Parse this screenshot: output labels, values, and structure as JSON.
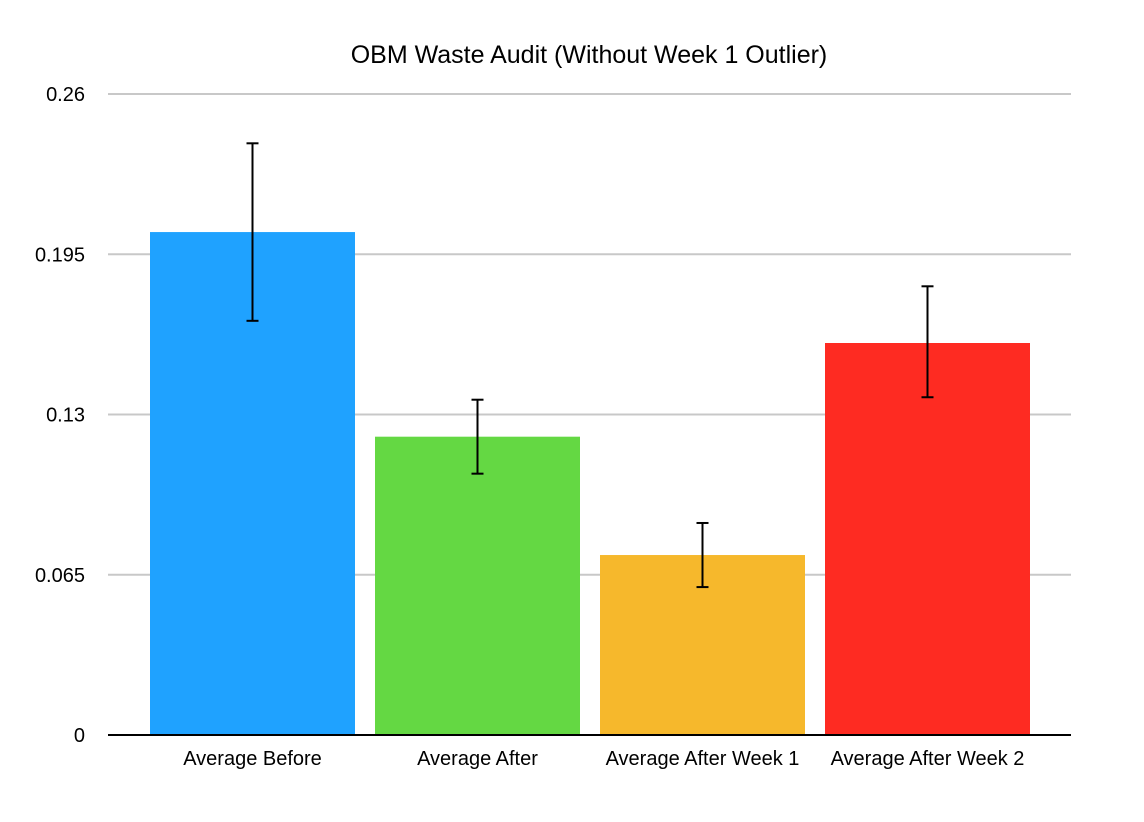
{
  "chart_data": {
    "type": "bar",
    "title": "OBM Waste Audit (Without Week 1 Outlier)",
    "xlabel": "",
    "ylabel": "",
    "ylim": [
      0,
      0.26
    ],
    "yticks": [
      0,
      0.065,
      0.13,
      0.195,
      0.26
    ],
    "ytick_labels": [
      "0",
      "0.065",
      "0.13",
      "0.195",
      "0.26"
    ],
    "grid": true,
    "legend": "none",
    "categories": [
      "Average Before",
      "Average After",
      "Average After Week 1",
      "Average After Week 2"
    ],
    "values": [
      0.204,
      0.121,
      0.073,
      0.159
    ],
    "error_low": [
      0.168,
      0.106,
      0.06,
      0.137
    ],
    "error_high": [
      0.24,
      0.136,
      0.086,
      0.182
    ],
    "colors": [
      "#1fa2ff",
      "#64d843",
      "#f6b82c",
      "#fe2b22"
    ]
  }
}
